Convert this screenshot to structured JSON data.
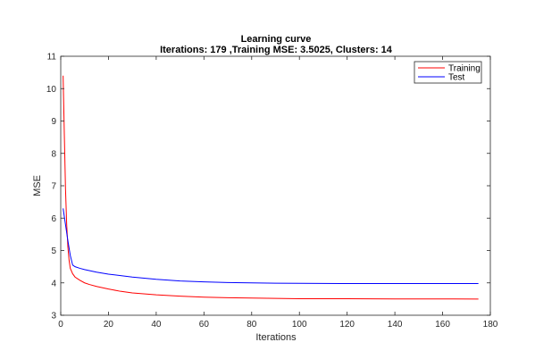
{
  "chart_data": {
    "type": "line",
    "title": "Learning curve",
    "subtitle": "Iterations: 179 ,Training MSE: 3.5025, Clusters: 14",
    "xlabel": "Iterations",
    "ylabel": "MSE",
    "xlim": [
      0,
      180
    ],
    "ylim": [
      3,
      11
    ],
    "xticks": [
      0,
      20,
      40,
      60,
      80,
      100,
      120,
      140,
      160,
      180
    ],
    "yticks": [
      3,
      4,
      5,
      6,
      7,
      8,
      9,
      10,
      11
    ],
    "grid": false,
    "legend_position": "top-right",
    "series": [
      {
        "name": "Training",
        "color": "#ff0000",
        "x": [
          1,
          1.5,
          2,
          2.5,
          3,
          3.5,
          4,
          5,
          6,
          8,
          10,
          12,
          15,
          20,
          25,
          30,
          40,
          50,
          60,
          70,
          80,
          90,
          100,
          120,
          140,
          160,
          175
        ],
        "y": [
          10.4,
          8.6,
          6.9,
          5.8,
          5.1,
          4.7,
          4.45,
          4.28,
          4.18,
          4.08,
          4.0,
          3.95,
          3.89,
          3.81,
          3.74,
          3.69,
          3.63,
          3.59,
          3.56,
          3.54,
          3.53,
          3.52,
          3.51,
          3.51,
          3.505,
          3.503,
          3.5
        ]
      },
      {
        "name": "Test",
        "color": "#0000ff",
        "x": [
          1,
          2,
          3,
          4,
          5,
          6,
          8,
          10,
          15,
          20,
          30,
          40,
          50,
          60,
          70,
          80,
          90,
          100,
          120,
          140,
          160,
          175
        ],
        "y": [
          6.3,
          5.8,
          5.3,
          4.85,
          4.55,
          4.5,
          4.45,
          4.41,
          4.33,
          4.27,
          4.18,
          4.11,
          4.06,
          4.03,
          4.01,
          4.0,
          3.99,
          3.985,
          3.98,
          3.98,
          3.98,
          3.98
        ]
      }
    ]
  }
}
